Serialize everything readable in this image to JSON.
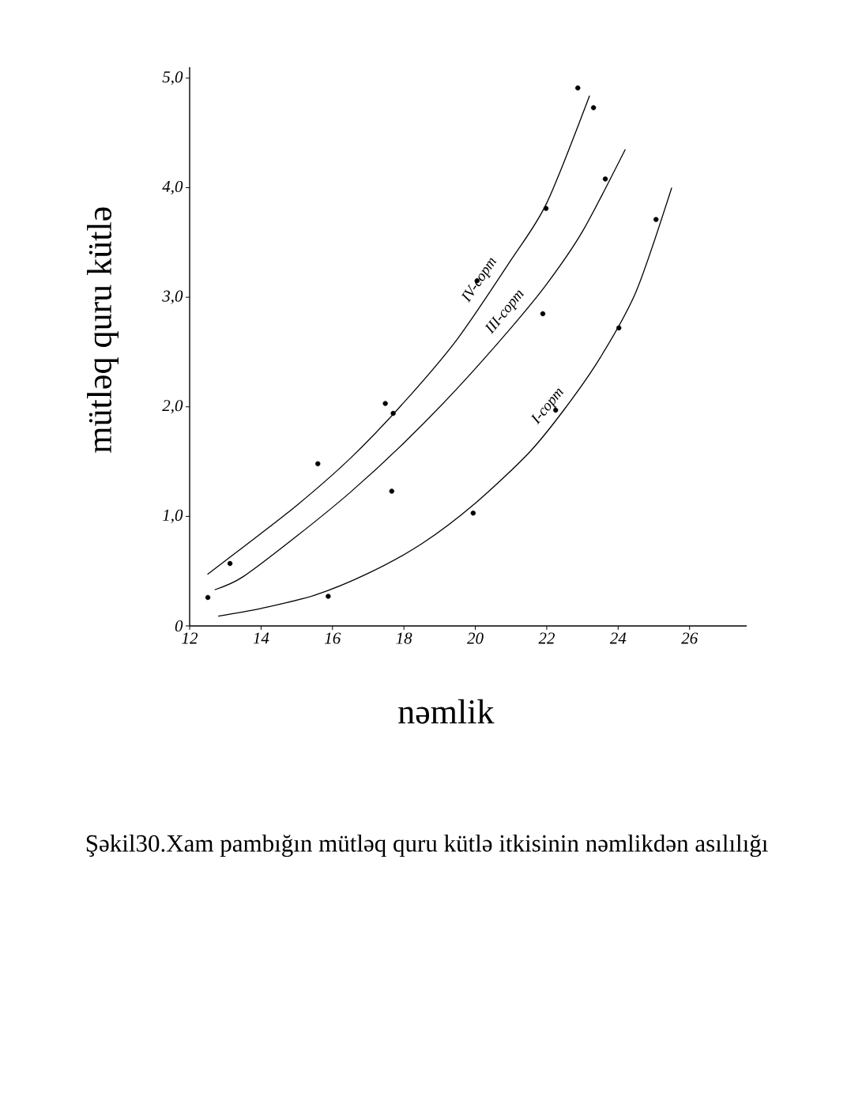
{
  "chart_data": {
    "type": "line",
    "xlabel": "nəmlik",
    "ylabel": "mütləq quru kütlə",
    "annotations": [
      "Şəkil30.Xam pambığın mütləq quru kütlə itkisinin nəmlikdən asılılığı"
    ],
    "xlim": [
      12,
      27.6
    ],
    "ylim": [
      0,
      5.1
    ],
    "xticks": [
      12,
      14,
      16,
      18,
      20,
      22,
      24,
      26
    ],
    "yticks": [
      {
        "value": 0,
        "label": "0"
      },
      {
        "value": 1,
        "label": "1,0"
      },
      {
        "value": 2,
        "label": "2,0"
      },
      {
        "value": 3,
        "label": "3,0"
      },
      {
        "value": 4,
        "label": "4,0"
      },
      {
        "value": 5,
        "label": "5,0"
      }
    ],
    "line_style": "solid",
    "series": [
      {
        "name": "IV-сорт",
        "color": "#000000",
        "x": [
          12.5,
          13.5,
          15,
          16.5,
          18,
          19.5,
          21,
          22,
          23.2
        ],
        "values": [
          0.47,
          0.72,
          1.1,
          1.53,
          2.04,
          2.62,
          3.34,
          3.86,
          4.84
        ]
      },
      {
        "name": "III-сорт",
        "color": "#000000",
        "x": [
          12.7,
          13.5,
          15,
          16.5,
          18,
          19.5,
          21,
          22,
          23,
          24.2
        ],
        "values": [
          0.33,
          0.45,
          0.82,
          1.22,
          1.67,
          2.17,
          2.72,
          3.12,
          3.6,
          4.35
        ]
      },
      {
        "name": "I-сорт",
        "color": "#000000",
        "x": [
          12.8,
          14,
          15.5,
          17,
          18.5,
          20,
          21.5,
          22.5,
          23.5,
          24.5,
          25.5
        ],
        "values": [
          0.09,
          0.16,
          0.28,
          0.48,
          0.75,
          1.12,
          1.58,
          1.98,
          2.45,
          3.05,
          4.0
        ]
      },
      {
        "type": "scatter",
        "marker": "circle",
        "color": "#000000",
        "x": [
          12.51,
          13.13,
          15.59,
          15.88,
          17.48,
          17.7,
          17.66,
          19.94,
          20.05,
          21.89,
          21.98,
          22.25,
          22.87,
          23.31,
          23.64,
          24.02,
          25.06
        ],
        "values": [
          0.26,
          0.57,
          1.48,
          0.27,
          2.03,
          1.94,
          1.23,
          1.03,
          3.15,
          2.85,
          3.81,
          1.97,
          4.91,
          4.73,
          4.08,
          2.72,
          3.71
        ]
      }
    ]
  }
}
